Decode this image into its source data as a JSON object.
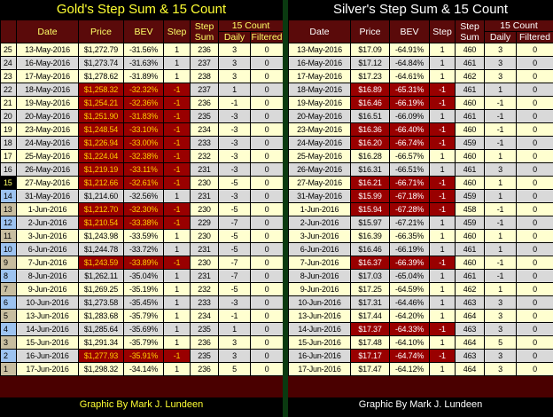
{
  "gold": {
    "title": "Gold's Step Sum & 15 Count",
    "footer": "Graphic By Mark J. Lundeen",
    "headers": {
      "date": "Date",
      "price": "Price",
      "bev": "BEV",
      "step": "Step",
      "step_sum": "Step Sum",
      "count15": "15 Count",
      "daily": "Daily",
      "filtered": "Filtered"
    },
    "rows": [
      [
        "25",
        "13-May-2016",
        "$1,272.79",
        "-31.56%",
        "1",
        "236",
        "3",
        "0"
      ],
      [
        "24",
        "16-May-2016",
        "$1,273.74",
        "-31.63%",
        "1",
        "237",
        "3",
        "0"
      ],
      [
        "23",
        "17-May-2016",
        "$1,278.62",
        "-31.89%",
        "1",
        "238",
        "3",
        "0"
      ],
      [
        "22",
        "18-May-2016",
        "$1,258.32",
        "-32.32%",
        "-1",
        "237",
        "1",
        "0"
      ],
      [
        "21",
        "19-May-2016",
        "$1,254.21",
        "-32.36%",
        "-1",
        "236",
        "-1",
        "0"
      ],
      [
        "20",
        "20-May-2016",
        "$1,251.90",
        "-31.83%",
        "-1",
        "235",
        "-3",
        "0"
      ],
      [
        "19",
        "23-May-2016",
        "$1,248.54",
        "-33.10%",
        "-1",
        "234",
        "-3",
        "0"
      ],
      [
        "18",
        "24-May-2016",
        "$1,226.94",
        "-33.00%",
        "-1",
        "233",
        "-3",
        "0"
      ],
      [
        "17",
        "25-May-2016",
        "$1,224.04",
        "-32.38%",
        "-1",
        "232",
        "-3",
        "0"
      ],
      [
        "16",
        "26-May-2016",
        "$1,219.19",
        "-33.11%",
        "-1",
        "231",
        "-3",
        "0"
      ],
      [
        "15",
        "27-May-2016",
        "$1,212.66",
        "-32.61%",
        "-1",
        "230",
        "-5",
        "0"
      ],
      [
        "14",
        "31-May-2016",
        "$1,214.60",
        "-32.56%",
        "1",
        "231",
        "-3",
        "0"
      ],
      [
        "13",
        "1-Jun-2016",
        "$1,212.70",
        "-32.30%",
        "-1",
        "230",
        "-5",
        "0"
      ],
      [
        "12",
        "2-Jun-2016",
        "$1,210.54",
        "-33.38%",
        "-1",
        "229",
        "-7",
        "0"
      ],
      [
        "11",
        "3-Jun-2016",
        "$1,243.98",
        "-33.59%",
        "1",
        "230",
        "-5",
        "0"
      ],
      [
        "10",
        "6-Jun-2016",
        "$1,244.78",
        "-33.72%",
        "1",
        "231",
        "-5",
        "0"
      ],
      [
        "9",
        "7-Jun-2016",
        "$1,243.59",
        "-33.89%",
        "-1",
        "230",
        "-7",
        "0"
      ],
      [
        "8",
        "8-Jun-2016",
        "$1,262.11",
        "-35.04%",
        "1",
        "231",
        "-7",
        "0"
      ],
      [
        "7",
        "9-Jun-2016",
        "$1,269.25",
        "-35.19%",
        "1",
        "232",
        "-5",
        "0"
      ],
      [
        "6",
        "10-Jun-2016",
        "$1,273.58",
        "-35.45%",
        "1",
        "233",
        "-3",
        "0"
      ],
      [
        "5",
        "13-Jun-2016",
        "$1,283.68",
        "-35.79%",
        "1",
        "234",
        "-1",
        "0"
      ],
      [
        "4",
        "14-Jun-2016",
        "$1,285.64",
        "-35.69%",
        "1",
        "235",
        "1",
        "0"
      ],
      [
        "3",
        "15-Jun-2016",
        "$1,291.34",
        "-35.79%",
        "1",
        "236",
        "3",
        "0"
      ],
      [
        "2",
        "16-Jun-2016",
        "$1,277.93",
        "-35.91%",
        "-1",
        "235",
        "3",
        "0"
      ],
      [
        "1",
        "17-Jun-2016",
        "$1,298.32",
        "-34.14%",
        "1",
        "236",
        "5",
        "0"
      ]
    ]
  },
  "silver": {
    "title": "Silver's Step Sum & 15 Count",
    "footer": "Graphic By Mark J. Lundeen",
    "headers": {
      "date": "Date",
      "price": "Price",
      "bev": "BEV",
      "step": "Step",
      "step_sum": "Step Sum",
      "count15": "15 Count",
      "daily": "Daily",
      "filtered": "Filtered"
    },
    "rows": [
      [
        "13-May-2016",
        "$17.09",
        "-64.91%",
        "1",
        "460",
        "3",
        "0"
      ],
      [
        "16-May-2016",
        "$17.12",
        "-64.84%",
        "1",
        "461",
        "3",
        "0"
      ],
      [
        "17-May-2016",
        "$17.23",
        "-64.61%",
        "1",
        "462",
        "3",
        "0"
      ],
      [
        "18-May-2016",
        "$16.89",
        "-65.31%",
        "-1",
        "461",
        "1",
        "0"
      ],
      [
        "19-May-2016",
        "$16.46",
        "-66.19%",
        "-1",
        "460",
        "-1",
        "0"
      ],
      [
        "20-May-2016",
        "$16.51",
        "-66.09%",
        "1",
        "461",
        "-1",
        "0"
      ],
      [
        "23-May-2016",
        "$16.36",
        "-66.40%",
        "-1",
        "460",
        "-1",
        "0"
      ],
      [
        "24-May-2016",
        "$16.20",
        "-66.74%",
        "-1",
        "459",
        "-1",
        "0"
      ],
      [
        "25-May-2016",
        "$16.28",
        "-66.57%",
        "1",
        "460",
        "1",
        "0"
      ],
      [
        "26-May-2016",
        "$16.31",
        "-66.51%",
        "1",
        "461",
        "3",
        "0"
      ],
      [
        "27-May-2016",
        "$16.21",
        "-66.71%",
        "-1",
        "460",
        "1",
        "0"
      ],
      [
        "31-May-2016",
        "$15.99",
        "-67.18%",
        "-1",
        "459",
        "1",
        "0"
      ],
      [
        "1-Jun-2016",
        "$15.94",
        "-67.28%",
        "-1",
        "458",
        "-1",
        "0"
      ],
      [
        "2-Jun-2016",
        "$15.97",
        "-67.21%",
        "1",
        "459",
        "-1",
        "0"
      ],
      [
        "3-Jun-2016",
        "$16.39",
        "-66.35%",
        "1",
        "460",
        "1",
        "0"
      ],
      [
        "6-Jun-2016",
        "$16.46",
        "-66.19%",
        "1",
        "461",
        "1",
        "0"
      ],
      [
        "7-Jun-2016",
        "$16.37",
        "-66.39%",
        "-1",
        "460",
        "-1",
        "0"
      ],
      [
        "8-Jun-2016",
        "$17.03",
        "-65.04%",
        "1",
        "461",
        "-1",
        "0"
      ],
      [
        "9-Jun-2016",
        "$17.25",
        "-64.59%",
        "1",
        "462",
        "1",
        "0"
      ],
      [
        "10-Jun-2016",
        "$17.31",
        "-64.46%",
        "1",
        "463",
        "3",
        "0"
      ],
      [
        "13-Jun-2016",
        "$17.44",
        "-64.20%",
        "1",
        "464",
        "3",
        "0"
      ],
      [
        "14-Jun-2016",
        "$17.37",
        "-64.33%",
        "-1",
        "463",
        "3",
        "0"
      ],
      [
        "15-Jun-2016",
        "$17.48",
        "-64.10%",
        "1",
        "464",
        "5",
        "0"
      ],
      [
        "16-Jun-2016",
        "$17.17",
        "-64.74%",
        "-1",
        "463",
        "3",
        "0"
      ],
      [
        "17-Jun-2016",
        "$17.47",
        "-64.12%",
        "1",
        "464",
        "3",
        "0"
      ]
    ]
  },
  "colors": {
    "header_bg": "#5a0a0a",
    "negative_bg": "#990000",
    "row_cream": "#ffffd0",
    "row_gray": "#d9d9d9"
  }
}
